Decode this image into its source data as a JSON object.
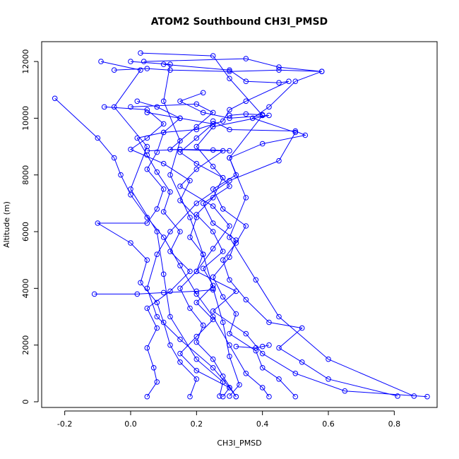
{
  "chart_data": {
    "type": "line",
    "title": "ATOM2 Southbound CH3I_PMSD",
    "xlabel": "CH3I_PMSD",
    "ylabel": "Altitude (m)",
    "xlim": [
      -0.27,
      0.93
    ],
    "ylim": [
      -200,
      12700
    ],
    "x_ticks": [
      -0.2,
      0.0,
      0.2,
      0.4,
      0.6,
      0.8
    ],
    "x_tick_labels": [
      "-0.2",
      "0.0",
      "0.2",
      "0.4",
      "0.6",
      "0.8"
    ],
    "y_ticks": [
      0,
      2000,
      4000,
      6000,
      8000,
      10000,
      12000
    ],
    "y_tick_labels": [
      "0",
      "2000",
      "4000",
      "6000",
      "8000",
      "10000",
      "12000"
    ],
    "grid": false,
    "markers": "open-circle",
    "color": "#0000ff",
    "series": [
      {
        "points": [
          [
            0.0,
            12000
          ],
          [
            0.12,
            11900
          ],
          [
            0.1,
            10600
          ],
          [
            0.15,
            9200
          ],
          [
            0.12,
            8000
          ],
          [
            0.18,
            6500
          ],
          [
            0.22,
            5200
          ],
          [
            0.25,
            4000
          ],
          [
            0.28,
            2800
          ],
          [
            0.3,
            1600
          ],
          [
            0.33,
            600
          ],
          [
            0.3,
            200
          ]
        ]
      },
      {
        "points": [
          [
            -0.09,
            12000
          ],
          [
            0.03,
            11700
          ],
          [
            -0.05,
            10400
          ],
          [
            0.05,
            9000
          ],
          [
            0.0,
            7500
          ],
          [
            0.08,
            6000
          ],
          [
            0.1,
            4500
          ],
          [
            0.12,
            3000
          ],
          [
            0.2,
            1500
          ],
          [
            0.28,
            700
          ],
          [
            0.27,
            200
          ]
        ]
      },
      {
        "points": [
          [
            0.03,
            12300
          ],
          [
            0.25,
            12200
          ],
          [
            0.3,
            11400
          ],
          [
            0.4,
            10100
          ],
          [
            0.3,
            8600
          ],
          [
            0.35,
            7200
          ],
          [
            0.3,
            5800
          ],
          [
            0.38,
            4300
          ],
          [
            0.45,
            3000
          ],
          [
            0.6,
            1500
          ],
          [
            0.86,
            200
          ]
        ]
      },
      {
        "points": [
          [
            0.04,
            12000
          ],
          [
            0.35,
            12100
          ],
          [
            0.45,
            11800
          ],
          [
            0.58,
            11650
          ],
          [
            0.5,
            11300
          ],
          [
            0.42,
            10400
          ],
          [
            0.37,
            10000
          ],
          [
            0.5,
            9500
          ],
          [
            0.45,
            8500
          ],
          [
            0.3,
            7800
          ],
          [
            0.2,
            7000
          ],
          [
            0.12,
            6000
          ],
          [
            0.08,
            5200
          ],
          [
            0.05,
            4000
          ],
          [
            0.08,
            3000
          ],
          [
            0.15,
            2200
          ],
          [
            0.25,
            1200
          ],
          [
            0.3,
            500
          ],
          [
            0.32,
            180
          ]
        ]
      },
      {
        "points": [
          [
            -0.23,
            10700
          ],
          [
            -0.1,
            9300
          ],
          [
            -0.05,
            8600
          ],
          [
            -0.03,
            8000
          ],
          [
            0.0,
            7300
          ],
          [
            0.05,
            6500
          ],
          [
            0.1,
            5800
          ],
          [
            0.15,
            4800
          ],
          [
            0.2,
            3800
          ],
          [
            0.25,
            3000
          ],
          [
            0.3,
            2000
          ],
          [
            0.35,
            1000
          ],
          [
            0.4,
            500
          ],
          [
            0.42,
            180
          ]
        ]
      },
      {
        "points": [
          [
            0.0,
            10400
          ],
          [
            0.2,
            10500
          ],
          [
            0.25,
            10200
          ],
          [
            0.2,
            9700
          ],
          [
            0.12,
            8900
          ],
          [
            0.28,
            8850
          ],
          [
            0.2,
            8200
          ],
          [
            0.15,
            7600
          ],
          [
            0.25,
            6900
          ],
          [
            0.3,
            6200
          ],
          [
            0.25,
            5400
          ],
          [
            0.2,
            4600
          ],
          [
            0.32,
            3900
          ],
          [
            0.25,
            3200
          ],
          [
            0.35,
            2400
          ],
          [
            0.4,
            1700
          ],
          [
            0.5,
            1000
          ],
          [
            0.65,
            380
          ],
          [
            0.9,
            180
          ]
        ]
      },
      {
        "points": [
          [
            0.05,
            10200
          ],
          [
            0.15,
            10000
          ],
          [
            0.1,
            9500
          ],
          [
            0.08,
            8800
          ],
          [
            0.05,
            8200
          ],
          [
            0.1,
            7500
          ],
          [
            0.08,
            6800
          ],
          [
            0.05,
            6300
          ],
          [
            -0.1,
            6300
          ],
          [
            0.0,
            5600
          ],
          [
            0.05,
            5000
          ],
          [
            0.03,
            4200
          ],
          [
            0.08,
            3500
          ],
          [
            0.1,
            2800
          ],
          [
            0.12,
            2000
          ],
          [
            0.15,
            1400
          ],
          [
            0.2,
            800
          ],
          [
            0.18,
            180
          ]
        ]
      },
      {
        "points": [
          [
            0.25,
            9900
          ],
          [
            0.3,
            9600
          ],
          [
            0.5,
            9550
          ],
          [
            0.53,
            9400
          ],
          [
            0.4,
            9100
          ],
          [
            0.3,
            8600
          ],
          [
            0.32,
            8000
          ],
          [
            0.25,
            7500
          ],
          [
            0.28,
            6800
          ],
          [
            0.35,
            6200
          ],
          [
            0.32,
            5600
          ],
          [
            0.28,
            5000
          ],
          [
            0.3,
            4300
          ],
          [
            0.35,
            3600
          ],
          [
            0.42,
            2800
          ],
          [
            0.52,
            2600
          ],
          [
            0.45,
            1900
          ],
          [
            0.52,
            1400
          ],
          [
            0.6,
            800
          ],
          [
            0.81,
            200
          ]
        ]
      },
      {
        "points": [
          [
            -0.08,
            10400
          ],
          [
            0.05,
            10300
          ],
          [
            0.1,
            9800
          ],
          [
            0.05,
            9300
          ],
          [
            0.0,
            8900
          ],
          [
            0.1,
            8400
          ],
          [
            0.18,
            7800
          ],
          [
            0.15,
            7100
          ],
          [
            0.2,
            6500
          ],
          [
            0.18,
            5800
          ],
          [
            0.22,
            5200
          ],
          [
            0.2,
            4600
          ],
          [
            0.15,
            4000
          ],
          [
            0.18,
            3300
          ],
          [
            0.22,
            2700
          ],
          [
            0.2,
            2100
          ],
          [
            0.25,
            1500
          ],
          [
            0.28,
            900
          ],
          [
            0.32,
            180
          ]
        ]
      },
      {
        "points": [
          [
            0.1,
            11900
          ],
          [
            0.3,
            11700
          ],
          [
            0.35,
            11300
          ],
          [
            0.45,
            11250
          ],
          [
            0.48,
            11300
          ],
          [
            0.35,
            10600
          ],
          [
            0.3,
            10300
          ],
          [
            0.28,
            9900
          ],
          [
            0.2,
            9600
          ],
          [
            0.1,
            9500
          ],
          [
            0.02,
            9300
          ],
          [
            0.05,
            8700
          ],
          [
            0.08,
            8100
          ],
          [
            0.12,
            7400
          ],
          [
            0.1,
            6700
          ],
          [
            0.15,
            6000
          ],
          [
            0.12,
            5300
          ],
          [
            0.18,
            4600
          ],
          [
            0.12,
            3900
          ],
          [
            0.05,
            3300
          ],
          [
            0.08,
            2600
          ],
          [
            0.05,
            1900
          ],
          [
            0.07,
            1200
          ],
          [
            0.08,
            700
          ],
          [
            0.05,
            180
          ]
        ]
      },
      {
        "points": [
          [
            0.22,
            10900
          ],
          [
            0.15,
            10600
          ],
          [
            0.22,
            10200
          ],
          [
            0.3,
            10000
          ],
          [
            0.42,
            10100
          ],
          [
            0.25,
            9700
          ],
          [
            0.2,
            9000
          ],
          [
            0.25,
            8300
          ],
          [
            0.3,
            7600
          ],
          [
            0.22,
            7000
          ],
          [
            0.25,
            6300
          ],
          [
            0.32,
            5700
          ],
          [
            0.3,
            5100
          ],
          [
            0.25,
            4400
          ],
          [
            0.28,
            3700
          ],
          [
            0.32,
            3100
          ],
          [
            0.3,
            2400
          ],
          [
            0.38,
            1800
          ],
          [
            0.4,
            1200
          ],
          [
            0.45,
            800
          ],
          [
            0.5,
            180
          ]
        ]
      },
      {
        "points": [
          [
            0.02,
            10600
          ],
          [
            0.08,
            10400
          ],
          [
            0.15,
            10000
          ],
          [
            0.25,
            9800
          ],
          [
            0.2,
            9300
          ],
          [
            0.15,
            8800
          ],
          [
            0.2,
            8400
          ],
          [
            0.28,
            7900
          ],
          [
            0.25,
            7200
          ],
          [
            0.2,
            6600
          ],
          [
            0.25,
            6000
          ],
          [
            0.28,
            5300
          ],
          [
            0.22,
            4700
          ],
          [
            0.25,
            4100
          ],
          [
            0.2,
            3500
          ],
          [
            0.25,
            2900
          ],
          [
            0.2,
            2300
          ],
          [
            0.15,
            1700
          ],
          [
            0.2,
            1100
          ],
          [
            0.3,
            500
          ],
          [
            0.28,
            180
          ]
        ]
      },
      {
        "points": [
          [
            -0.11,
            3800
          ],
          [
            0.02,
            3800
          ],
          [
            0.1,
            3850
          ],
          [
            0.2,
            3900
          ],
          [
            0.25,
            3950
          ]
        ]
      },
      {
        "points": [
          [
            0.32,
            1950
          ],
          [
            0.38,
            1900
          ],
          [
            0.4,
            1950
          ],
          [
            0.42,
            2000
          ]
        ]
      },
      {
        "points": [
          [
            0.05,
            8850
          ],
          [
            0.15,
            8900
          ],
          [
            0.25,
            8880
          ],
          [
            0.3,
            8850
          ]
        ]
      },
      {
        "points": [
          [
            0.3,
            10100
          ],
          [
            0.35,
            10150
          ],
          [
            0.4,
            10120
          ]
        ]
      },
      {
        "points": [
          [
            -0.05,
            11700
          ],
          [
            0.05,
            11750
          ],
          [
            0.12,
            11700
          ],
          [
            0.3,
            11650
          ],
          [
            0.45,
            11700
          ],
          [
            0.58,
            11650
          ]
        ]
      }
    ]
  }
}
